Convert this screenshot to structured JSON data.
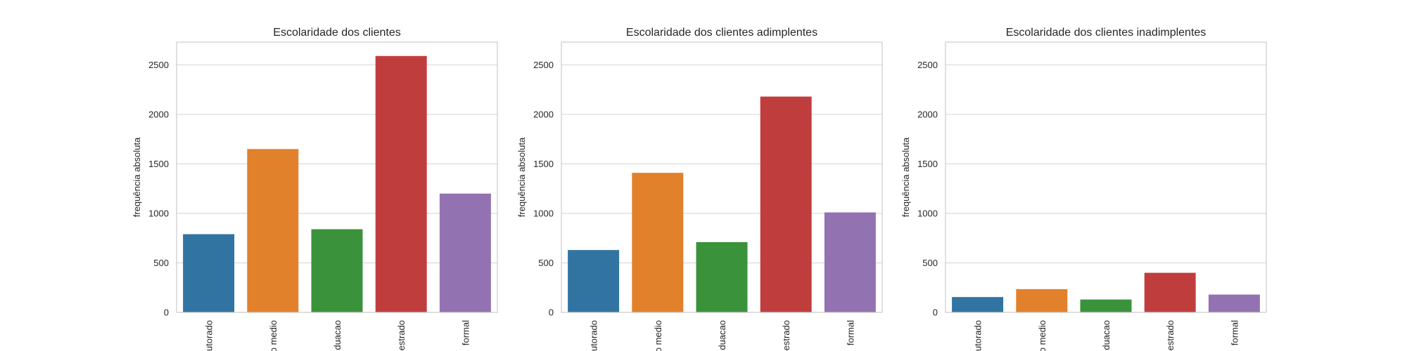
{
  "chart_data": [
    {
      "type": "bar",
      "title": "Escolaridade dos clientes",
      "xlabel": "",
      "ylabel": "frequência absoluta",
      "ylim": [
        0,
        2730
      ],
      "yticks": [
        0,
        500,
        1000,
        1500,
        2000,
        2500
      ],
      "grid": true,
      "categories": [
        "utorado",
        "o medio",
        "duacao",
        "estrado",
        "formal"
      ],
      "values": [
        790,
        1650,
        840,
        2590,
        1200
      ],
      "colors": [
        "#3274a1",
        "#e1812c",
        "#3a923a",
        "#c03d3e",
        "#9372b2"
      ]
    },
    {
      "type": "bar",
      "title": "Escolaridade dos clientes adimplentes",
      "xlabel": "",
      "ylabel": "frequência absoluta",
      "ylim": [
        0,
        2730
      ],
      "yticks": [
        0,
        500,
        1000,
        1500,
        2000,
        2500
      ],
      "grid": true,
      "categories": [
        "utorado",
        "o medio",
        "duacao",
        "estrado",
        "formal"
      ],
      "values": [
        630,
        1410,
        710,
        2180,
        1010
      ],
      "colors": [
        "#3274a1",
        "#e1812c",
        "#3a923a",
        "#c03d3e",
        "#9372b2"
      ]
    },
    {
      "type": "bar",
      "title": "Escolaridade dos clientes inadimplentes",
      "xlabel": "",
      "ylabel": "frequência absoluta",
      "ylim": [
        0,
        2730
      ],
      "yticks": [
        0,
        500,
        1000,
        1500,
        2000,
        2500
      ],
      "grid": true,
      "categories": [
        "utorado",
        "o medio",
        "duacao",
        "estrado",
        "formal"
      ],
      "values": [
        155,
        235,
        130,
        400,
        180
      ],
      "colors": [
        "#3274a1",
        "#e1812c",
        "#3a923a",
        "#c03d3e",
        "#9372b2"
      ]
    }
  ]
}
